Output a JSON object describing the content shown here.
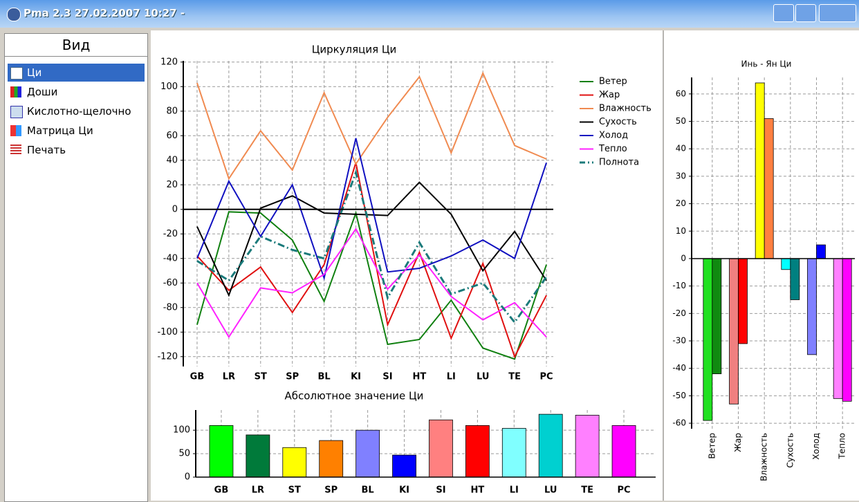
{
  "window": {
    "title": "Pma 2.3 27.02.2007 10:27 -"
  },
  "sidebar": {
    "header": "Вид",
    "items": [
      "Ци",
      "Доши",
      "Кислотно-щелочно",
      "Матрица Ци",
      "Печать"
    ]
  },
  "chart_data": [
    {
      "type": "line",
      "title": "Циркуляция Ци",
      "categories": [
        "GB",
        "LR",
        "ST",
        "SP",
        "BL",
        "KI",
        "SI",
        "HT",
        "LI",
        "LU",
        "TE",
        "PC"
      ],
      "series": [
        {
          "name": "Ветер",
          "color": "#108010",
          "values": [
            -94,
            -2,
            -3,
            -25,
            -75,
            -3,
            -110,
            -106,
            -74,
            -113,
            -122,
            -45
          ]
        },
        {
          "name": "Жар",
          "color": "#e01010",
          "values": [
            -38,
            -66,
            -47,
            -84,
            -45,
            38,
            -94,
            -35,
            -105,
            -44,
            -120,
            -70
          ]
        },
        {
          "name": "Влажность",
          "color": "#f08a50",
          "values": [
            103,
            25,
            64,
            32,
            95,
            37,
            75,
            108,
            46,
            111,
            52,
            41
          ]
        },
        {
          "name": "Сухость",
          "color": "#000000",
          "values": [
            -14,
            -70,
            1,
            11,
            -3,
            -4,
            -5,
            22,
            -4,
            -50,
            -18,
            -58
          ]
        },
        {
          "name": "Холод",
          "color": "#1010c0",
          "values": [
            -40,
            23,
            -22,
            20,
            -56,
            58,
            -51,
            -48,
            -38,
            -25,
            -40,
            38
          ]
        },
        {
          "name": "Тепло",
          "color": "#ff20ff",
          "values": [
            -60,
            -104,
            -64,
            -68,
            -53,
            -16,
            -65,
            -37,
            -71,
            -90,
            -76,
            -104
          ]
        },
        {
          "name": "Полнота",
          "color": "#1a7a7a",
          "dash": true,
          "values": [
            -42,
            -58,
            -22,
            -33,
            -40,
            30,
            -72,
            -27,
            -69,
            -60,
            -92,
            -55
          ]
        }
      ],
      "ylim": [
        -128,
        121
      ],
      "yticks": [
        -120,
        -100,
        -80,
        -60,
        -40,
        -20,
        0,
        20,
        40,
        60,
        80,
        100,
        120
      ],
      "grid": true
    },
    {
      "type": "bar",
      "title": "Абсолютное значение Ци",
      "categories": [
        "GB",
        "LR",
        "ST",
        "SP",
        "BL",
        "KI",
        "SI",
        "HT",
        "LI",
        "LU",
        "TE",
        "PC"
      ],
      "values": [
        110,
        90,
        63,
        78,
        100,
        47,
        122,
        110,
        104,
        134,
        132,
        110
      ],
      "colors": [
        "#00ff00",
        "#007a3a",
        "#ffff00",
        "#ff8000",
        "#8080ff",
        "#0000ff",
        "#ff8080",
        "#ff0000",
        "#80ffff",
        "#00d0d0",
        "#ff80ff",
        "#ff00ff"
      ],
      "ylim": [
        0,
        143
      ],
      "yticks": [
        0,
        50,
        100
      ],
      "grid": true
    },
    {
      "type": "bar",
      "title": "Инь - Ян Ци",
      "categories": [
        "Ветер",
        "Жар",
        "Влажность",
        "Сухость",
        "Холод",
        "Тепло"
      ],
      "series": [
        {
          "colors": [
            "#20e020",
            "#f08080",
            "#ffff00",
            "#00ffff",
            "#8080ff",
            "#ff80ff"
          ],
          "values": [
            -59,
            -53,
            64,
            -4,
            -35,
            -51
          ]
        },
        {
          "colors": [
            "#108a10",
            "#ff0000",
            "#ff8040",
            "#008080",
            "#0000ff",
            "#ff00ff"
          ],
          "values": [
            -42,
            -31,
            51,
            -15,
            5,
            -52
          ]
        }
      ],
      "ylim": [
        -62,
        66
      ],
      "yticks": [
        -60,
        -50,
        -40,
        -30,
        -20,
        -10,
        0,
        10,
        20,
        30,
        40,
        50,
        60
      ],
      "grid": true
    }
  ]
}
